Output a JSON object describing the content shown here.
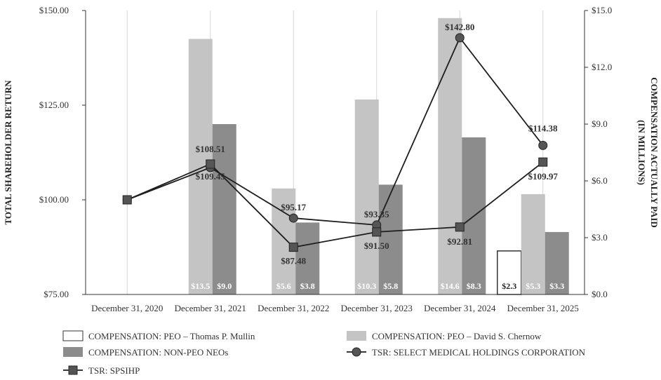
{
  "chart_data": {
    "type": "bar",
    "categories": [
      "December 31, 2020",
      "December 31, 2021",
      "December 31, 2022",
      "December 31, 2023",
      "December 31, 2024",
      "December 31, 2025"
    ],
    "ylabel_left": "TOTAL SHAREHOLDER RETURN",
    "ylabel_right_line1": "COMPENSATION ACTUALLY PAID",
    "ylabel_right_line2": "(IN MILLIONS)",
    "ylim_left": [
      75,
      150
    ],
    "ylim_right": [
      0,
      15
    ],
    "left_ticks": [
      "$75.00",
      "$100.00",
      "$125.00",
      "$150.00"
    ],
    "left_tick_values": [
      75,
      100,
      125,
      150
    ],
    "right_ticks": [
      "$0.0",
      "$3.0",
      "$6.0",
      "$9.0",
      "$12.0",
      "$15.0"
    ],
    "right_tick_values": [
      0,
      3,
      6,
      9,
      12,
      15
    ],
    "grid": "vertical",
    "legend_position": "bottom",
    "bar_series": [
      {
        "name": "COMPENSATION: PEO – Thomas P. Mullin",
        "color": "#ffffff",
        "stroke": "#333333",
        "values": [
          null,
          null,
          null,
          null,
          null,
          2.3
        ],
        "labels": [
          "",
          "",
          "",
          "",
          "",
          "$2.3"
        ]
      },
      {
        "name": "COMPENSATION: PEO – David S. Chernow",
        "color": "#c4c4c4",
        "stroke": "none",
        "values": [
          null,
          13.5,
          5.6,
          10.3,
          14.6,
          5.3
        ],
        "labels": [
          "",
          "$13.5",
          "$5.6",
          "$10.3",
          "$14.6",
          "$5.3"
        ]
      },
      {
        "name": "COMPENSATION: NON-PEO NEOs",
        "color": "#8c8c8c",
        "stroke": "none",
        "values": [
          null,
          9.0,
          3.8,
          5.8,
          8.3,
          3.3
        ],
        "labels": [
          "",
          "$9.0",
          "$3.8",
          "$5.8",
          "$8.3",
          "$3.3"
        ]
      }
    ],
    "line_series": [
      {
        "name": "TSR: SELECT MEDICAL HOLDINGS CORPORATION",
        "marker": "circle",
        "color": "#555555",
        "values": [
          100,
          108.51,
          95.17,
          93.35,
          142.8,
          114.38
        ],
        "labels": [
          "",
          "$108.51",
          "$95.17",
          "$93.35",
          "$142.80",
          "$114.38"
        ]
      },
      {
        "name": "TSR: SPSIHP",
        "marker": "square",
        "color": "#555555",
        "values": [
          100,
          109.45,
          87.48,
          91.5,
          92.81,
          109.97
        ],
        "labels": [
          "",
          "$109.45",
          "$87.48",
          "$91.50",
          "$92.81",
          "$109.97"
        ]
      }
    ]
  }
}
